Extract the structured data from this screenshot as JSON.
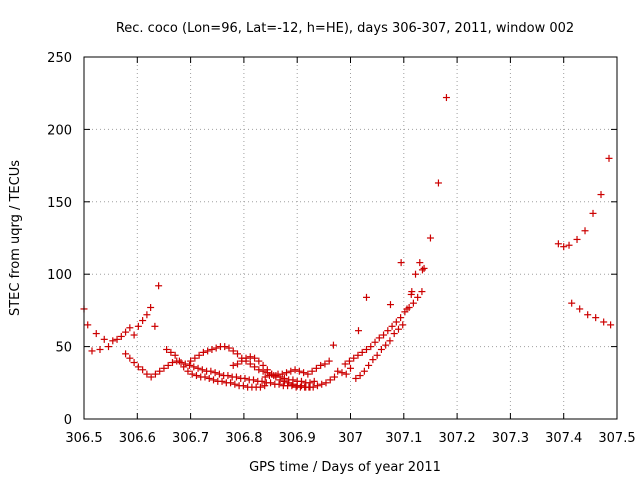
{
  "chart_data": {
    "type": "scatter",
    "title": "Rec. coco (Lon=96, Lat=-12, h=HE), days 306-307, 2011, window 002",
    "xlabel": "GPS time / Days of year 2011",
    "ylabel": "STEC from uqrg / TECUs",
    "xlim": [
      306.5,
      307.5
    ],
    "ylim": [
      0,
      250
    ],
    "x_ticks": [
      306.5,
      306.6,
      306.7,
      306.8,
      306.9,
      307,
      307.1,
      307.2,
      307.3,
      307.4,
      307.5
    ],
    "x_tick_labels": [
      "306.5",
      "306.6",
      "306.7",
      "306.8",
      "306.9",
      "307",
      "307.1",
      "307.2",
      "307.3",
      "307.4",
      "307.5"
    ],
    "y_ticks": [
      0,
      50,
      100,
      150,
      200,
      250
    ],
    "y_tick_labels": [
      "0",
      "50",
      "100",
      "150",
      "200",
      "250"
    ],
    "grid": true,
    "marker": "plus",
    "marker_color": "#cc0000",
    "series": [
      {
        "points": [
          [
            306.5,
            76
          ],
          [
            306.507,
            65
          ],
          [
            306.515,
            47
          ],
          [
            306.523,
            59
          ],
          [
            306.53,
            48
          ],
          [
            306.538,
            55
          ],
          [
            306.546,
            50
          ],
          [
            306.554,
            54
          ],
          [
            306.562,
            55
          ],
          [
            306.57,
            57
          ],
          [
            306.578,
            60
          ],
          [
            306.586,
            63
          ],
          [
            306.594,
            58
          ],
          [
            306.602,
            64
          ],
          [
            306.61,
            68
          ],
          [
            306.618,
            72
          ],
          [
            306.625,
            77
          ],
          [
            306.633,
            64
          ],
          [
            306.64,
            92
          ],
          [
            306.578,
            45
          ],
          [
            306.586,
            42
          ],
          [
            306.594,
            39
          ],
          [
            306.602,
            36
          ],
          [
            306.61,
            34
          ],
          [
            306.618,
            31
          ],
          [
            306.626,
            29
          ],
          [
            306.634,
            31
          ],
          [
            306.642,
            33
          ],
          [
            306.65,
            35
          ],
          [
            306.658,
            37
          ],
          [
            306.666,
            39
          ],
          [
            306.674,
            40
          ],
          [
            306.682,
            39
          ],
          [
            306.69,
            38
          ],
          [
            306.698,
            37
          ],
          [
            306.706,
            36
          ],
          [
            306.714,
            35
          ],
          [
            306.722,
            34
          ],
          [
            306.73,
            33
          ],
          [
            306.738,
            33
          ],
          [
            306.746,
            32
          ],
          [
            306.754,
            31
          ],
          [
            306.762,
            30
          ],
          [
            306.77,
            30
          ],
          [
            306.778,
            29
          ],
          [
            306.786,
            29
          ],
          [
            306.794,
            28
          ],
          [
            306.802,
            28
          ],
          [
            306.81,
            27
          ],
          [
            306.818,
            27
          ],
          [
            306.826,
            26
          ],
          [
            306.834,
            26
          ],
          [
            306.842,
            25
          ],
          [
            306.85,
            25
          ],
          [
            306.858,
            24
          ],
          [
            306.866,
            24
          ],
          [
            306.874,
            23
          ],
          [
            306.882,
            23
          ],
          [
            306.89,
            23
          ],
          [
            306.898,
            22
          ],
          [
            306.906,
            22
          ],
          [
            306.914,
            22
          ],
          [
            306.922,
            22
          ],
          [
            306.93,
            22
          ],
          [
            306.938,
            23
          ],
          [
            306.946,
            24
          ],
          [
            306.954,
            25
          ],
          [
            306.962,
            27
          ],
          [
            306.97,
            29
          ],
          [
            306.655,
            48
          ],
          [
            306.663,
            46
          ],
          [
            306.671,
            44
          ],
          [
            306.679,
            40
          ],
          [
            306.687,
            36
          ],
          [
            306.695,
            33
          ],
          [
            306.703,
            31
          ],
          [
            306.711,
            30
          ],
          [
            306.719,
            29
          ],
          [
            306.727,
            29
          ],
          [
            306.735,
            28
          ],
          [
            306.743,
            27
          ],
          [
            306.751,
            26
          ],
          [
            306.759,
            26
          ],
          [
            306.767,
            25
          ],
          [
            306.775,
            25
          ],
          [
            306.783,
            24
          ],
          [
            306.791,
            23
          ],
          [
            306.799,
            23
          ],
          [
            306.807,
            22
          ],
          [
            306.815,
            22
          ],
          [
            306.823,
            22
          ],
          [
            306.831,
            22
          ],
          [
            306.839,
            23
          ],
          [
            306.7,
            40
          ],
          [
            306.708,
            42
          ],
          [
            306.716,
            44
          ],
          [
            306.724,
            46
          ],
          [
            306.732,
            47
          ],
          [
            306.74,
            48
          ],
          [
            306.748,
            49
          ],
          [
            306.756,
            50
          ],
          [
            306.764,
            50
          ],
          [
            306.772,
            49
          ],
          [
            306.78,
            47
          ],
          [
            306.788,
            45
          ],
          [
            306.796,
            42
          ],
          [
            306.804,
            40
          ],
          [
            306.812,
            38
          ],
          [
            306.82,
            36
          ],
          [
            306.828,
            34
          ],
          [
            306.836,
            33
          ],
          [
            306.844,
            32
          ],
          [
            306.852,
            31
          ],
          [
            306.86,
            30
          ],
          [
            306.868,
            29
          ],
          [
            306.876,
            28
          ],
          [
            306.884,
            27
          ],
          [
            306.892,
            27
          ],
          [
            306.9,
            26
          ],
          [
            306.908,
            26
          ],
          [
            306.916,
            25
          ],
          [
            306.924,
            25
          ],
          [
            306.932,
            26
          ],
          [
            306.78,
            37
          ],
          [
            306.788,
            38
          ],
          [
            306.796,
            40
          ],
          [
            306.804,
            42
          ],
          [
            306.812,
            43
          ],
          [
            306.82,
            42
          ],
          [
            306.828,
            40
          ],
          [
            306.836,
            37
          ],
          [
            306.844,
            34
          ],
          [
            306.852,
            31
          ],
          [
            306.86,
            29
          ],
          [
            306.868,
            27
          ],
          [
            306.876,
            26
          ],
          [
            306.884,
            25
          ],
          [
            306.892,
            24
          ],
          [
            306.9,
            23
          ],
          [
            306.908,
            23
          ],
          [
            306.916,
            22
          ],
          [
            306.924,
            22
          ],
          [
            306.84,
            29
          ],
          [
            306.848,
            30
          ],
          [
            306.856,
            30
          ],
          [
            306.864,
            31
          ],
          [
            306.872,
            31
          ],
          [
            306.88,
            32
          ],
          [
            306.888,
            33
          ],
          [
            306.896,
            34
          ],
          [
            306.904,
            33
          ],
          [
            306.912,
            32
          ],
          [
            306.92,
            31
          ],
          [
            306.928,
            33
          ],
          [
            306.936,
            35
          ],
          [
            306.944,
            37
          ],
          [
            306.952,
            38
          ],
          [
            306.96,
            40
          ],
          [
            306.968,
            51
          ],
          [
            306.976,
            33
          ],
          [
            306.984,
            32
          ],
          [
            306.992,
            31
          ],
          [
            307.0,
            35
          ],
          [
            306.99,
            38
          ],
          [
            306.998,
            40
          ],
          [
            307.006,
            42
          ],
          [
            307.014,
            44
          ],
          [
            307.022,
            46
          ],
          [
            307.03,
            48
          ],
          [
            307.038,
            50
          ],
          [
            307.046,
            53
          ],
          [
            307.054,
            56
          ],
          [
            307.062,
            58
          ],
          [
            307.07,
            61
          ],
          [
            307.078,
            64
          ],
          [
            307.086,
            67
          ],
          [
            307.094,
            70
          ],
          [
            307.102,
            74
          ],
          [
            307.11,
            77
          ],
          [
            307.118,
            80
          ],
          [
            307.126,
            84
          ],
          [
            307.134,
            88
          ],
          [
            307.01,
            28
          ],
          [
            307.018,
            30
          ],
          [
            307.026,
            33
          ],
          [
            307.034,
            37
          ],
          [
            307.042,
            41
          ],
          [
            307.05,
            44
          ],
          [
            307.058,
            48
          ],
          [
            307.066,
            51
          ],
          [
            307.074,
            54
          ],
          [
            307.082,
            59
          ],
          [
            307.09,
            62
          ],
          [
            307.098,
            65
          ],
          [
            307.106,
            76
          ],
          [
            307.114,
            86
          ],
          [
            307.122,
            100
          ],
          [
            307.13,
            108
          ],
          [
            307.138,
            104
          ],
          [
            307.015,
            61
          ],
          [
            307.03,
            84
          ],
          [
            307.075,
            79
          ],
          [
            307.095,
            108
          ],
          [
            307.115,
            88
          ],
          [
            307.135,
            103
          ],
          [
            307.15,
            125
          ],
          [
            307.165,
            163
          ],
          [
            307.18,
            222
          ],
          [
            307.39,
            121
          ],
          [
            307.4,
            119
          ],
          [
            307.41,
            120
          ],
          [
            307.425,
            124
          ],
          [
            307.44,
            130
          ],
          [
            307.455,
            142
          ],
          [
            307.47,
            155
          ],
          [
            307.485,
            180
          ],
          [
            307.415,
            80
          ],
          [
            307.43,
            76
          ],
          [
            307.445,
            72
          ],
          [
            307.46,
            70
          ],
          [
            307.475,
            67
          ],
          [
            307.488,
            65
          ]
        ]
      }
    ]
  }
}
